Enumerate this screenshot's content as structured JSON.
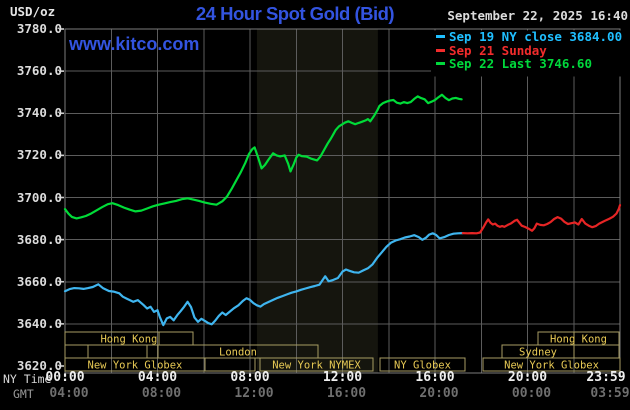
{
  "header": {
    "units_label": "USD/oz",
    "title": "24 Hour Spot Gold (Bid)",
    "datetime": "September 22, 2025 16:40",
    "watermark": "www.kitco.com"
  },
  "legend": {
    "position": "top-right",
    "items": [
      {
        "label": "Sep 19 NY close 3684.00",
        "color": "#1fbfff"
      },
      {
        "label": "Sep 21 Sunday",
        "color": "#f22c2c"
      },
      {
        "label": "Sep 22 Last 3746.60",
        "color": "#00d93c"
      }
    ]
  },
  "axes": {
    "ny_time_label": "NY Time",
    "gmt_label": "GMT",
    "y_ticks": [
      {
        "value": 3780,
        "label": "3780.0"
      },
      {
        "value": 3760,
        "label": "3760.0"
      },
      {
        "value": 3740,
        "label": "3740.0"
      },
      {
        "value": 3720,
        "label": "3720.0"
      },
      {
        "value": 3700,
        "label": "3700.0"
      },
      {
        "value": 3680,
        "label": "3680.0"
      },
      {
        "value": 3660,
        "label": "3660.0"
      },
      {
        "value": 3640,
        "label": "3640.0"
      },
      {
        "value": 3620,
        "label": "3620.0"
      }
    ],
    "x_ticks": [
      {
        "hour": 0,
        "ny": "00:00",
        "gmt": "04:00"
      },
      {
        "hour": 4,
        "ny": "04:00",
        "gmt": "08:00"
      },
      {
        "hour": 8,
        "ny": "08:00",
        "gmt": "12:00"
      },
      {
        "hour": 12,
        "ny": "12:00",
        "gmt": "16:00"
      },
      {
        "hour": 16,
        "ny": "16:00",
        "gmt": "20:00"
      },
      {
        "hour": 20,
        "ny": "20:00",
        "gmt": "00:00"
      },
      {
        "hour": 24,
        "ny": "23:59",
        "gmt": "03:59"
      }
    ]
  },
  "colors": {
    "background": "#000000",
    "grid": "#5c5c5c",
    "border": "#7c7c7c",
    "tick": "#d0d0d0",
    "band": "#15150e",
    "session_border": "#a79d63",
    "session_text": "#e8ca55",
    "title_blue": "#3354e0"
  },
  "chart_data": {
    "type": "line",
    "title": "24 Hour Spot Gold (Bid)",
    "ylabel": "USD/oz",
    "ylim": [
      3620,
      3780
    ],
    "x_range_hours": [
      0,
      24
    ],
    "grid": true,
    "legend_position": "top-right",
    "nymex_shaded_band_hours": [
      8.3,
      13.53
    ],
    "sessions": [
      {
        "row": 0,
        "start_hour": 0,
        "end_hour": 5.53,
        "label": "Hong Kong",
        "dividers": [
          4.06
        ]
      },
      {
        "row": 0,
        "start_hour": 20.45,
        "end_hour": 23.96,
        "label": "Hong Kong",
        "dividers": [
          22.01
        ]
      },
      {
        "row": 1,
        "start_hour": 0,
        "end_hour": 0.99,
        "label": "",
        "dividers": []
      },
      {
        "row": 1,
        "start_hour": 0.99,
        "end_hour": 3.55,
        "label": "",
        "dividers": []
      },
      {
        "row": 1,
        "start_hour": 3.55,
        "end_hour": 4.02,
        "label": "",
        "dividers": []
      },
      {
        "row": 1,
        "start_hour": 4.02,
        "end_hour": 10.94,
        "label": "London",
        "dividers": []
      },
      {
        "row": 1,
        "start_hour": 18.9,
        "end_hour": 22.01,
        "label": "Sydney",
        "dividers": []
      },
      {
        "row": 1,
        "start_hour": 22.01,
        "end_hour": 23.96,
        "label": "",
        "dividers": []
      },
      {
        "row": 2,
        "start_hour": 0,
        "end_hour": 6.05,
        "label": "New York Globex",
        "dividers": []
      },
      {
        "row": 2,
        "start_hour": 6.05,
        "end_hour": 8.22,
        "label": "",
        "dividers": []
      },
      {
        "row": 2,
        "start_hour": 8.43,
        "end_hour": 13.32,
        "label": "New York NYMEX",
        "dividers": []
      },
      {
        "row": 2,
        "start_hour": 13.62,
        "end_hour": 17.3,
        "label": "NY Globex",
        "dividers": []
      },
      {
        "row": 2,
        "start_hour": 18.08,
        "end_hour": 24,
        "label": "New York Globex",
        "dividers": []
      }
    ],
    "series": [
      {
        "name": "Sep 19 NY close",
        "close_value": 3684.0,
        "color": "#3fb5ef",
        "points": [
          [
            0,
            3655.5
          ],
          [
            0.2,
            3656.5
          ],
          [
            0.4,
            3657
          ],
          [
            0.6,
            3656.9
          ],
          [
            0.8,
            3656.6
          ],
          [
            1,
            3657
          ],
          [
            1.2,
            3657.5
          ],
          [
            1.44,
            3658.8
          ],
          [
            1.65,
            3656.9
          ],
          [
            1.9,
            3655.6
          ],
          [
            2.1,
            3655.3
          ],
          [
            2.35,
            3654.5
          ],
          [
            2.5,
            3652.9
          ],
          [
            2.7,
            3651.8
          ],
          [
            2.95,
            3650.5
          ],
          [
            3.15,
            3651.3
          ],
          [
            3.4,
            3648.9
          ],
          [
            3.55,
            3647.3
          ],
          [
            3.7,
            3648.1
          ],
          [
            3.85,
            3645.7
          ],
          [
            4,
            3646.5
          ],
          [
            4.1,
            3643.3
          ],
          [
            4.25,
            3639.4
          ],
          [
            4.4,
            3642.6
          ],
          [
            4.55,
            3643.3
          ],
          [
            4.7,
            3641.7
          ],
          [
            4.85,
            3644.1
          ],
          [
            5,
            3646
          ],
          [
            5.15,
            3648.1
          ],
          [
            5.3,
            3650.5
          ],
          [
            5.45,
            3648
          ],
          [
            5.6,
            3643
          ],
          [
            5.75,
            3641
          ],
          [
            5.9,
            3642.4
          ],
          [
            6.05,
            3641.4
          ],
          [
            6.2,
            3640.3
          ],
          [
            6.35,
            3639.8
          ],
          [
            6.5,
            3641.6
          ],
          [
            6.65,
            3643.8
          ],
          [
            6.8,
            3645.4
          ],
          [
            6.95,
            3644.2
          ],
          [
            7.1,
            3645.6
          ],
          [
            7.3,
            3647.4
          ],
          [
            7.5,
            3648.8
          ],
          [
            7.7,
            3651
          ],
          [
            7.85,
            3652.2
          ],
          [
            8,
            3651.4
          ],
          [
            8.15,
            3649.8
          ],
          [
            8.3,
            3648.8
          ],
          [
            8.45,
            3648.2
          ],
          [
            8.6,
            3649.4
          ],
          [
            8.8,
            3650.4
          ],
          [
            9,
            3651.4
          ],
          [
            9.2,
            3652.4
          ],
          [
            9.4,
            3653.2
          ],
          [
            9.6,
            3654
          ],
          [
            9.8,
            3654.8
          ],
          [
            10,
            3655.4
          ],
          [
            10.2,
            3656.2
          ],
          [
            10.4,
            3656.8
          ],
          [
            10.6,
            3657.4
          ],
          [
            10.8,
            3658
          ],
          [
            11,
            3658.6
          ],
          [
            11.25,
            3662.6
          ],
          [
            11.4,
            3660.2
          ],
          [
            11.6,
            3660.9
          ],
          [
            11.8,
            3661.8
          ],
          [
            12,
            3664.8
          ],
          [
            12.15,
            3665.8
          ],
          [
            12.3,
            3665.2
          ],
          [
            12.5,
            3664.5
          ],
          [
            12.7,
            3664.3
          ],
          [
            12.9,
            3665.4
          ],
          [
            13.1,
            3666.4
          ],
          [
            13.3,
            3668.3
          ],
          [
            13.5,
            3671.4
          ],
          [
            13.7,
            3674
          ],
          [
            13.9,
            3676.6
          ],
          [
            14.1,
            3678.6
          ],
          [
            14.3,
            3679.6
          ],
          [
            14.5,
            3680.2
          ],
          [
            14.7,
            3681
          ],
          [
            14.9,
            3681.5
          ],
          [
            15.1,
            3682.1
          ],
          [
            15.3,
            3681.2
          ],
          [
            15.45,
            3679.9
          ],
          [
            15.6,
            3680.8
          ],
          [
            15.75,
            3682.4
          ],
          [
            15.9,
            3683
          ],
          [
            16.05,
            3682.2
          ],
          [
            16.2,
            3680.6
          ],
          [
            16.4,
            3681.2
          ],
          [
            16.6,
            3682.2
          ],
          [
            16.8,
            3682.8
          ],
          [
            17,
            3683
          ],
          [
            17.2,
            3683.1
          ]
        ]
      },
      {
        "name": "Sep 21 Sunday",
        "color": "#e62525",
        "points": [
          [
            17.2,
            3683.1
          ],
          [
            17.4,
            3683
          ],
          [
            17.6,
            3683.1
          ],
          [
            17.8,
            3683
          ],
          [
            17.95,
            3683.4
          ],
          [
            18.1,
            3686
          ],
          [
            18.2,
            3688
          ],
          [
            18.3,
            3689.6
          ],
          [
            18.4,
            3688
          ],
          [
            18.5,
            3687.2
          ],
          [
            18.6,
            3687.6
          ],
          [
            18.7,
            3686.6
          ],
          [
            18.8,
            3686.1
          ],
          [
            18.9,
            3686.4
          ],
          [
            19,
            3686.1
          ],
          [
            19.15,
            3687
          ],
          [
            19.3,
            3687.8
          ],
          [
            19.45,
            3689
          ],
          [
            19.55,
            3689.4
          ],
          [
            19.65,
            3688
          ],
          [
            19.75,
            3686.6
          ],
          [
            19.9,
            3686
          ],
          [
            20.05,
            3685.2
          ],
          [
            20.2,
            3684.2
          ],
          [
            20.3,
            3685.4
          ],
          [
            20.4,
            3687.6
          ],
          [
            20.55,
            3687
          ],
          [
            20.7,
            3686.8
          ],
          [
            20.85,
            3687.4
          ],
          [
            21,
            3688.3
          ],
          [
            21.15,
            3689.8
          ],
          [
            21.3,
            3690.7
          ],
          [
            21.45,
            3690
          ],
          [
            21.6,
            3688.4
          ],
          [
            21.75,
            3687.4
          ],
          [
            21.9,
            3687.8
          ],
          [
            22.05,
            3688.2
          ],
          [
            22.2,
            3687.2
          ],
          [
            22.35,
            3689.8
          ],
          [
            22.5,
            3687.6
          ],
          [
            22.65,
            3686.6
          ],
          [
            22.8,
            3685.9
          ],
          [
            22.95,
            3686.4
          ],
          [
            23.1,
            3687.6
          ],
          [
            23.25,
            3688.4
          ],
          [
            23.4,
            3689.2
          ],
          [
            23.55,
            3690
          ],
          [
            23.7,
            3690.9
          ],
          [
            23.85,
            3692.4
          ],
          [
            23.95,
            3694.6
          ],
          [
            24,
            3696.4
          ]
        ]
      },
      {
        "name": "Sep 22 Last",
        "last_value": 3746.6,
        "color": "#00dc38",
        "points": [
          [
            0,
            3694.5
          ],
          [
            0.15,
            3692.3
          ],
          [
            0.3,
            3690.8
          ],
          [
            0.5,
            3690.1
          ],
          [
            0.7,
            3690.6
          ],
          [
            0.9,
            3691.2
          ],
          [
            1.1,
            3692.2
          ],
          [
            1.35,
            3693.8
          ],
          [
            1.6,
            3695.4
          ],
          [
            1.85,
            3696.8
          ],
          [
            2.05,
            3697.3
          ],
          [
            2.3,
            3696.4
          ],
          [
            2.55,
            3695.2
          ],
          [
            2.8,
            3694.2
          ],
          [
            3.05,
            3693.4
          ],
          [
            3.3,
            3693.8
          ],
          [
            3.55,
            3694.8
          ],
          [
            3.8,
            3695.8
          ],
          [
            4.05,
            3696.6
          ],
          [
            4.3,
            3697.2
          ],
          [
            4.55,
            3697.8
          ],
          [
            4.8,
            3698.4
          ],
          [
            5.05,
            3699.2
          ],
          [
            5.3,
            3699.6
          ],
          [
            5.55,
            3699
          ],
          [
            5.8,
            3698.4
          ],
          [
            6.05,
            3697.6
          ],
          [
            6.3,
            3697
          ],
          [
            6.55,
            3696.6
          ],
          [
            6.8,
            3698.2
          ],
          [
            7,
            3700.4
          ],
          [
            7.2,
            3704
          ],
          [
            7.4,
            3708
          ],
          [
            7.6,
            3712
          ],
          [
            7.8,
            3716.5
          ],
          [
            7.95,
            3720.5
          ],
          [
            8.1,
            3723
          ],
          [
            8.2,
            3723.8
          ],
          [
            8.35,
            3719
          ],
          [
            8.5,
            3713.8
          ],
          [
            8.65,
            3715.5
          ],
          [
            8.8,
            3718
          ],
          [
            9,
            3721
          ],
          [
            9.15,
            3720
          ],
          [
            9.3,
            3719.5
          ],
          [
            9.5,
            3720
          ],
          [
            9.65,
            3716
          ],
          [
            9.75,
            3712.4
          ],
          [
            9.9,
            3716
          ],
          [
            10,
            3719
          ],
          [
            10.1,
            3720.3
          ],
          [
            10.25,
            3719.6
          ],
          [
            10.45,
            3719.4
          ],
          [
            10.65,
            3718.4
          ],
          [
            10.9,
            3717.6
          ],
          [
            11.05,
            3719.5
          ],
          [
            11.2,
            3722.5
          ],
          [
            11.35,
            3725.5
          ],
          [
            11.5,
            3728
          ],
          [
            11.6,
            3730
          ],
          [
            11.7,
            3732
          ],
          [
            11.85,
            3733.8
          ],
          [
            12,
            3734.8
          ],
          [
            12.1,
            3735.5
          ],
          [
            12.25,
            3736.2
          ],
          [
            12.4,
            3735.4
          ],
          [
            12.55,
            3734.8
          ],
          [
            12.7,
            3735.4
          ],
          [
            12.85,
            3736
          ],
          [
            13,
            3736.6
          ],
          [
            13.1,
            3737.2
          ],
          [
            13.2,
            3736.2
          ],
          [
            13.35,
            3738.5
          ],
          [
            13.5,
            3741.3
          ],
          [
            13.6,
            3743.5
          ],
          [
            13.75,
            3744.8
          ],
          [
            13.9,
            3745.5
          ],
          [
            14.05,
            3746
          ],
          [
            14.2,
            3746.3
          ],
          [
            14.35,
            3745
          ],
          [
            14.5,
            3744.6
          ],
          [
            14.65,
            3745.3
          ],
          [
            14.8,
            3744.8
          ],
          [
            14.95,
            3745.3
          ],
          [
            15.1,
            3746.8
          ],
          [
            15.25,
            3748
          ],
          [
            15.4,
            3747.2
          ],
          [
            15.55,
            3746.6
          ],
          [
            15.7,
            3744.8
          ],
          [
            15.85,
            3745.5
          ],
          [
            16,
            3746.3
          ],
          [
            16.15,
            3747.6
          ],
          [
            16.3,
            3748.8
          ],
          [
            16.45,
            3747.3
          ],
          [
            16.6,
            3746.2
          ],
          [
            16.75,
            3747
          ],
          [
            16.9,
            3747.3
          ],
          [
            17.05,
            3746.8
          ],
          [
            17.15,
            3746.6
          ]
        ]
      }
    ]
  }
}
